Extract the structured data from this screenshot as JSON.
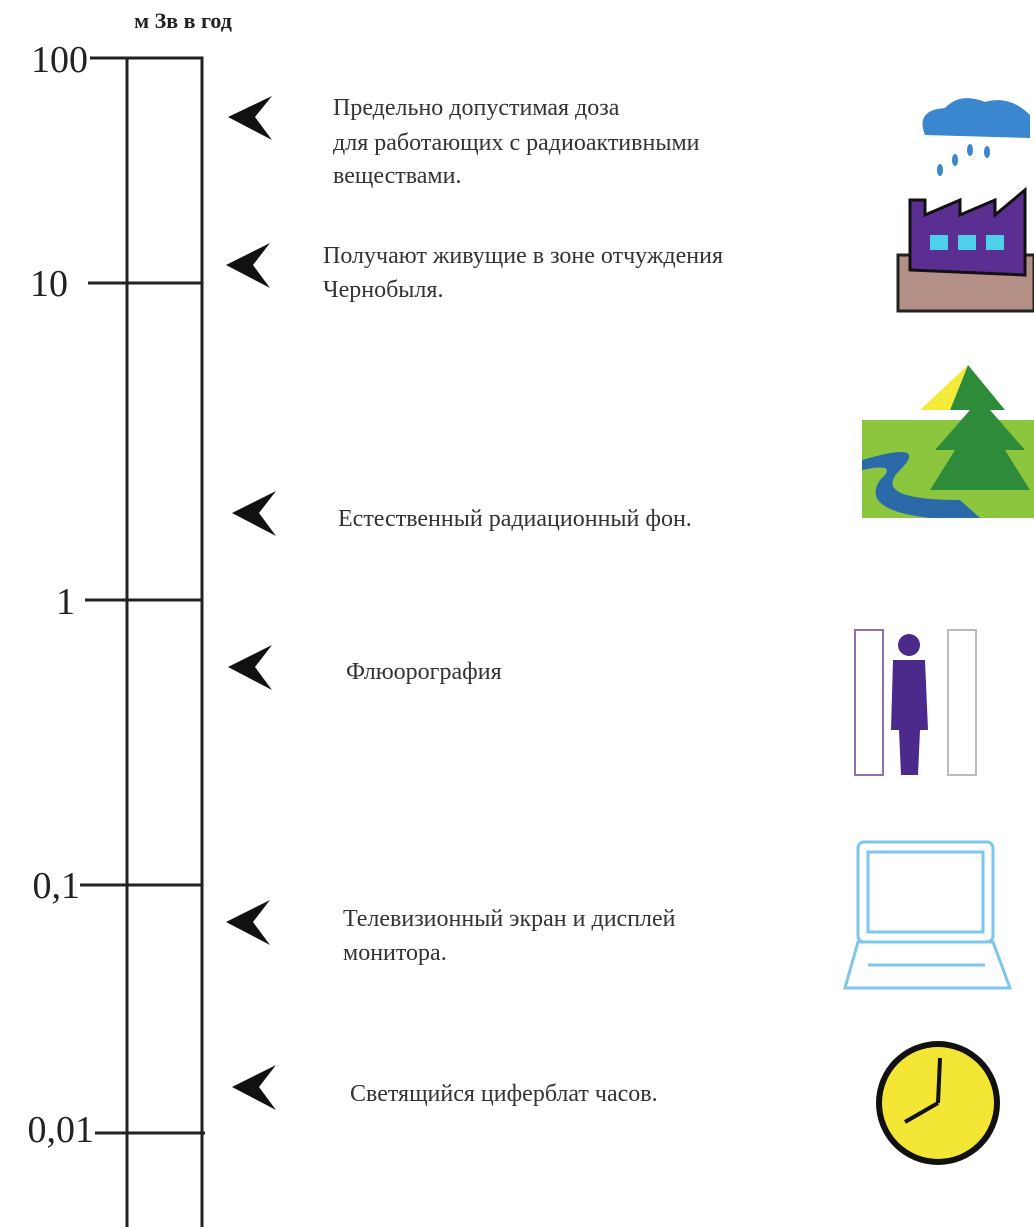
{
  "unit_label": "м Зв в год",
  "scale": {
    "ticks": [
      "100",
      "10",
      "1",
      "0,1",
      "0,01"
    ]
  },
  "items": [
    {
      "lines": [
        "Предельно допустимая доза",
        "для работающих с радиоактивными",
        "веществами."
      ]
    },
    {
      "lines": [
        "Получают живущие в зоне отчуждения",
        "Чернобыля."
      ]
    },
    {
      "lines": [
        "Естественный радиационный фон."
      ]
    },
    {
      "lines": [
        "Флюорография"
      ]
    },
    {
      "lines": [
        "Телевизионный экран и дисплей",
        "монитора."
      ]
    },
    {
      "lines": [
        "Светящийся циферблат часов."
      ]
    }
  ]
}
